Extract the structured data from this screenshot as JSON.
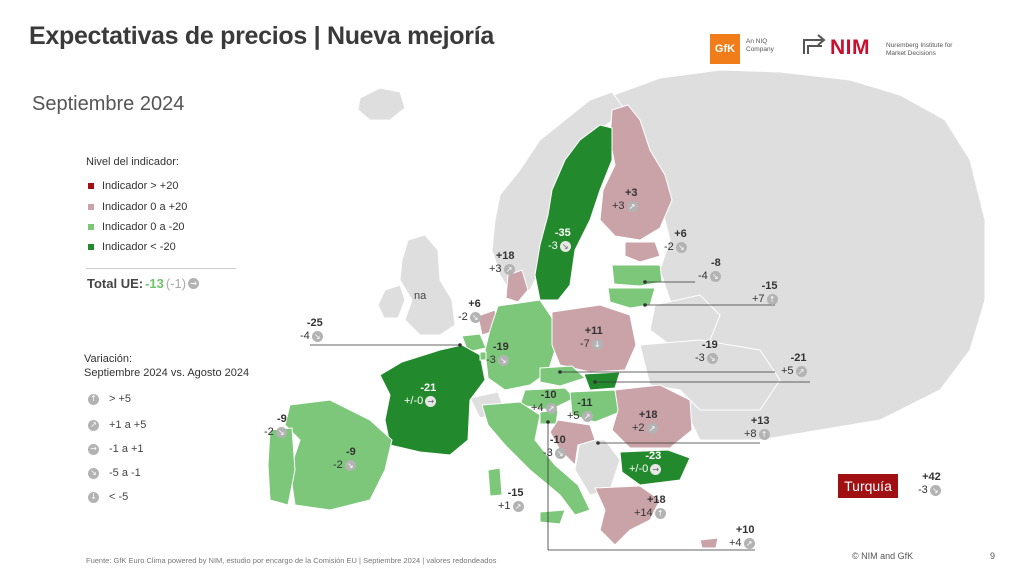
{
  "title": "Expectativas de precios | Nueva mejoría",
  "subtitle": "Septiembre 2024",
  "logos": {
    "gfk": "GfK",
    "gfk_sub": "An NIQ Company",
    "nim": "NIM",
    "nim_sub": "Nuremberg Institute for Market Decisions"
  },
  "colors": {
    "dark_red": "#a00f12",
    "light_red": "#c9a3a8",
    "light_green": "#7cc77a",
    "dark_green": "#228a2c",
    "no_data": "#dedede"
  },
  "legend": {
    "title": "Nivel del indicador:",
    "items": [
      {
        "label": "Indicador > +20",
        "color": "#a00f12"
      },
      {
        "label": "Indicador 0 a +20",
        "color": "#c9a3a8"
      },
      {
        "label": "Indicador 0 a -20",
        "color": "#7cc77a"
      },
      {
        "label": "Indicador < -20",
        "color": "#228a2c"
      }
    ]
  },
  "total_ue": {
    "label": "Total UE:",
    "value": "-13",
    "change": "(-1)",
    "icon": "arrow-right-icon"
  },
  "variation": {
    "title_line1": "Variación:",
    "title_line2": "Septiembre 2024 vs. Agosto 2024",
    "items": [
      {
        "icon": "↑",
        "label": "> +5"
      },
      {
        "icon": "↗",
        "label": "+1 a +5"
      },
      {
        "icon": "→",
        "label": "-1 a +1"
      },
      {
        "icon": "↘",
        "label": "-5 a -1"
      },
      {
        "icon": "↓",
        "label": "< -5"
      }
    ]
  },
  "na_label": "na",
  "countries": [
    {
      "id": "finland",
      "value": "+3",
      "change": "+3",
      "icon": "↗"
    },
    {
      "id": "sweden",
      "value": "-35",
      "change": "-3",
      "icon": "↘"
    },
    {
      "id": "estonia",
      "value": "+6",
      "change": "-2",
      "icon": "↘"
    },
    {
      "id": "latvia",
      "value": "-8",
      "change": "-4",
      "icon": "↘"
    },
    {
      "id": "lithuania",
      "value": "-15",
      "change": "+7",
      "icon": "↑"
    },
    {
      "id": "denmark",
      "value": "+18",
      "change": "+3",
      "icon": "↗"
    },
    {
      "id": "netherlands",
      "value": "+6",
      "change": "-2",
      "icon": "↘"
    },
    {
      "id": "belgium",
      "value": "-25",
      "change": "-4",
      "icon": "↘"
    },
    {
      "id": "germany",
      "value": "-19",
      "change": "-3",
      "icon": "↘"
    },
    {
      "id": "poland",
      "value": "+11",
      "change": "-7",
      "icon": "↓"
    },
    {
      "id": "czechia",
      "value": "-19",
      "change": "-3",
      "icon": "↘"
    },
    {
      "id": "slovakia",
      "value": "-21",
      "change": "+5",
      "icon": "↗"
    },
    {
      "id": "france",
      "value": "-21",
      "change": "+/-0",
      "icon": "→"
    },
    {
      "id": "austria",
      "value": "-10",
      "change": "+4",
      "icon": "↗"
    },
    {
      "id": "hungary",
      "value": "-11",
      "change": "+5",
      "icon": "↗"
    },
    {
      "id": "romania",
      "value": "+18",
      "change": "+2",
      "icon": "↗"
    },
    {
      "id": "luxembourg",
      "value": "-9",
      "change": "-2",
      "icon": "↘"
    },
    {
      "id": "spain",
      "value": "-9",
      "change": "-2",
      "icon": "↘"
    },
    {
      "id": "slovenia",
      "value": "-10",
      "change": "-3",
      "icon": "↘"
    },
    {
      "id": "croatia",
      "value": "+13",
      "change": "+8",
      "icon": "↑"
    },
    {
      "id": "bulgaria",
      "value": "-23",
      "change": "+/-0",
      "icon": "→"
    },
    {
      "id": "italy",
      "value": "-15",
      "change": "+1",
      "icon": "↗"
    },
    {
      "id": "greece",
      "value": "+18",
      "change": "+14",
      "icon": "↑"
    },
    {
      "id": "cyprus",
      "value": "+10",
      "change": "+4",
      "icon": "↗"
    }
  ],
  "turkey": {
    "label": "Turquía",
    "value": "+42",
    "change": "-3",
    "icon": "↘"
  },
  "footer": "Fuente: GfK Euro Clima powered by NIM, estudio por encargo de la Comisión EU | Septiembre 2024 | valores redondeados",
  "copyright": "© NIM and GfK",
  "page_number": "9"
}
